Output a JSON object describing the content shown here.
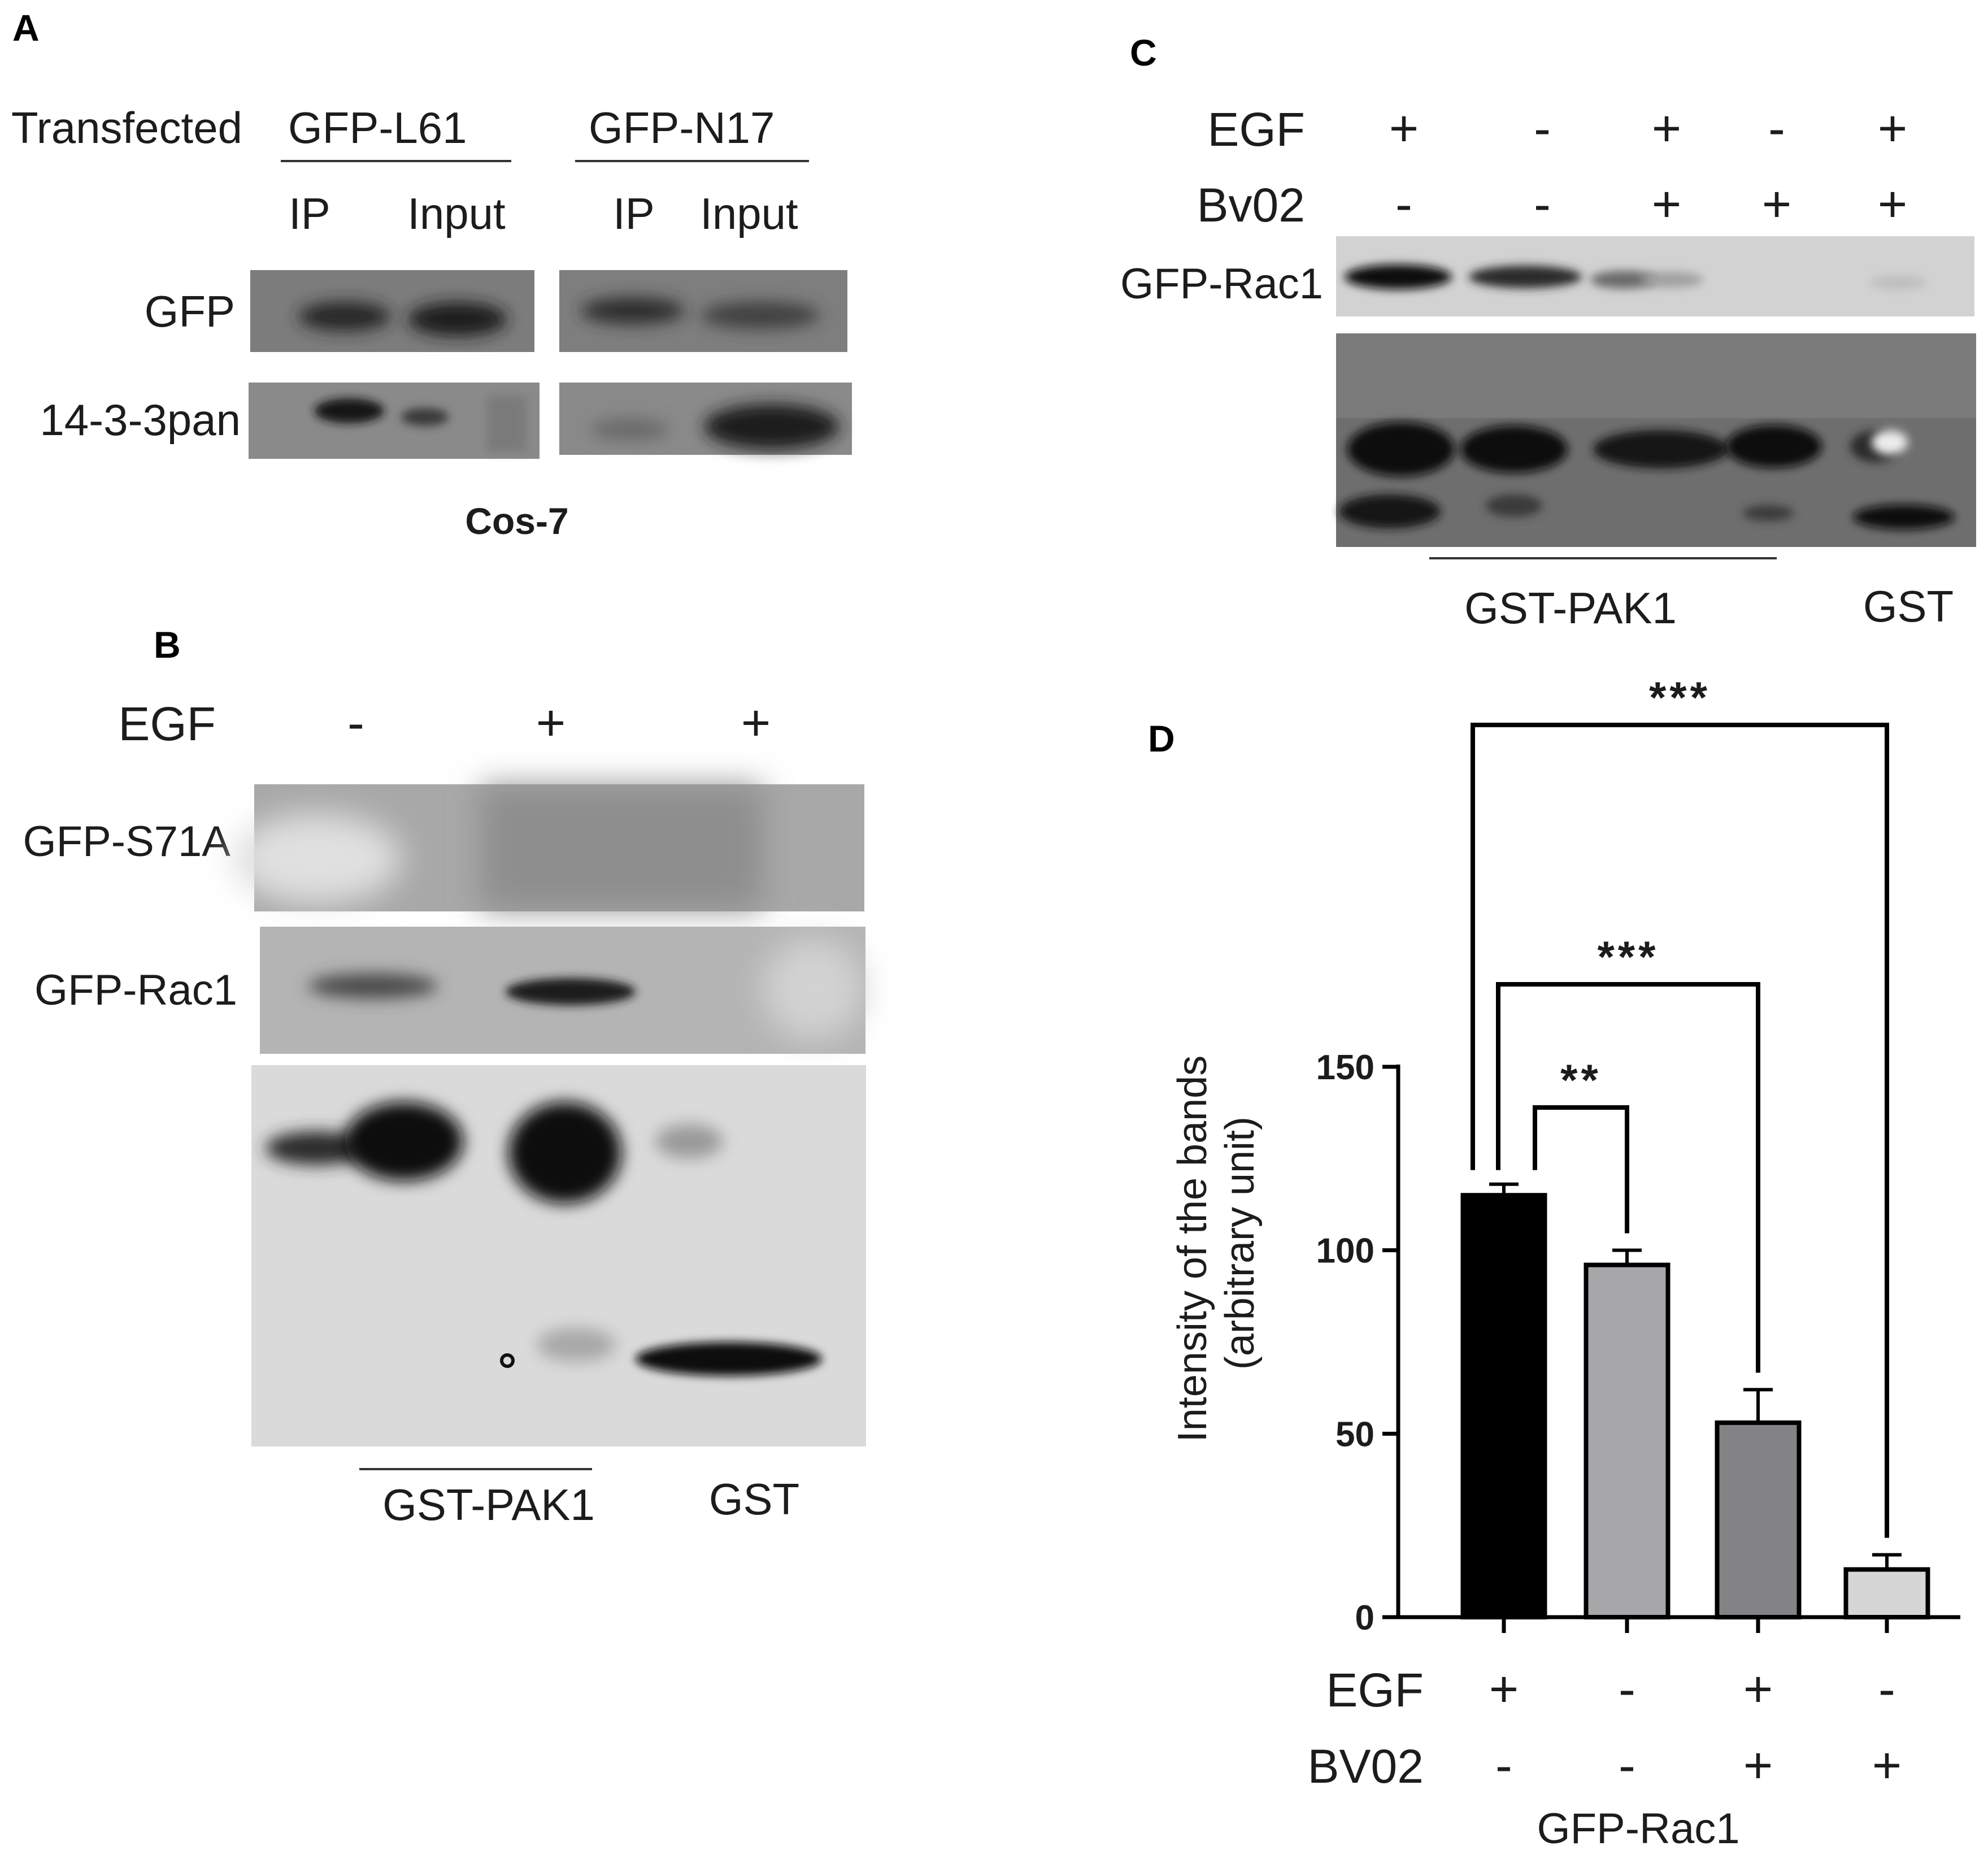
{
  "panels": {
    "a": {
      "letter": "A",
      "transfected_label": "Transfected",
      "groups": [
        "GFP-L61",
        "GFP-N17"
      ],
      "lanes": [
        "IP",
        "Input",
        "IP",
        "Input"
      ],
      "rows": [
        "GFP",
        "14-3-3pan"
      ],
      "cell_line": "Cos-7"
    },
    "b": {
      "letter": "B",
      "egf_label": "EGF",
      "egf": [
        "-",
        "+",
        "+"
      ],
      "rows": [
        "GFP-S71A",
        "GFP-Rac1"
      ],
      "bottom": [
        "GST-PAK1",
        "GST"
      ]
    },
    "c": {
      "letter": "C",
      "egf_label": "EGF",
      "bv02_label": "Bv02",
      "egf": [
        "+",
        "-",
        "+",
        "-",
        "+"
      ],
      "bv02": [
        "-",
        "-",
        "+",
        "+",
        "+"
      ],
      "row": "GFP-Rac1",
      "bottom": [
        "GST-PAK1",
        "GST"
      ]
    },
    "d": {
      "letter": "D",
      "egf_label": "EGF",
      "bv02_label": "BV02",
      "egf": [
        "+",
        "-",
        "+",
        "-"
      ],
      "bv02": [
        "-",
        "-",
        "+",
        "+"
      ],
      "group_label": "GFP-Rac1",
      "significance": [
        "***",
        "***",
        "**"
      ]
    }
  },
  "chart_data": {
    "type": "bar",
    "title": "",
    "ylabel": "Intensity of the bands\n(arbitrary unit)",
    "xlabel": "GFP-Rac1",
    "categories": [
      "EGF+ / BV02-",
      "EGF- / BV02-",
      "EGF+ / BV02+",
      "EGF- / BV02+"
    ],
    "values": [
      115,
      96,
      53,
      13
    ],
    "errors": [
      3,
      4,
      9,
      4
    ],
    "colors": [
      "#000000",
      "#a7a7aa",
      "#838386",
      "#d6d6d6"
    ],
    "ylim": [
      0,
      150
    ],
    "yticks": [
      0,
      50,
      100,
      150
    ],
    "comparisons": [
      {
        "from": 0,
        "to": 3,
        "label": "***"
      },
      {
        "from": 0,
        "to": 2,
        "label": "***"
      },
      {
        "from": 0,
        "to": 1,
        "label": "**"
      }
    ]
  }
}
